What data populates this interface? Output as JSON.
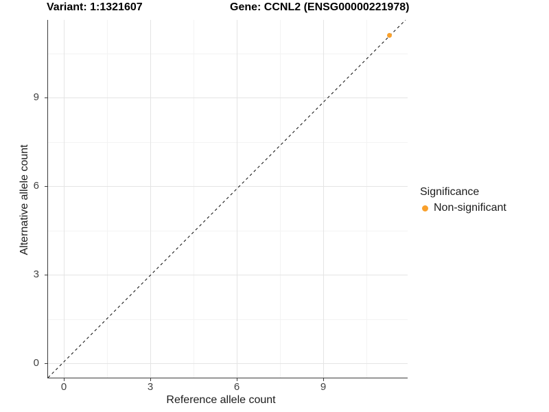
{
  "title": {
    "variant_label": "Variant: 1:1321607",
    "gene_label": "Gene: CCNL2 (ENSG00000221978)"
  },
  "chart_data": {
    "type": "scatter",
    "title": "Variant: 1:1321607   Gene: CCNL2 (ENSG00000221978)",
    "xlabel": "Reference allele count",
    "ylabel": "Alternative allele count",
    "x_ticks": [
      0,
      3,
      6,
      9
    ],
    "y_ticks": [
      0,
      3,
      6,
      9
    ],
    "xlim": [
      -0.6,
      11.9
    ],
    "ylim": [
      -0.6,
      11.6
    ],
    "grid": "white background with light gray major gridlines at ticks and minor gridlines at midpoints",
    "identity_line": {
      "equation": "y = x",
      "style": "dashed",
      "color": "#1a1a1a"
    },
    "series": [
      {
        "name": "Non-significant",
        "color": "#F9A02B",
        "points": [
          {
            "x": 11.3,
            "y": 11.1
          }
        ]
      }
    ],
    "legend": {
      "title": "Significance",
      "position": "right",
      "entries": [
        {
          "label": "Non-significant",
          "color": "#F9A02B"
        }
      ]
    }
  },
  "colors": {
    "point_orange": "#F9A02B",
    "grid_major": "#e4e4e4",
    "grid_minor": "#f3f3f3",
    "axis_line": "#3a3a3a",
    "tick_text": "#404040",
    "text": "#1a1a1a"
  }
}
